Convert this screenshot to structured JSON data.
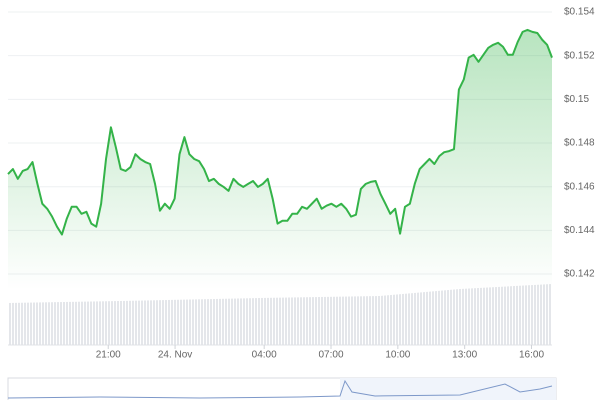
{
  "chart_data": {
    "type": "line",
    "x": [
      16.5,
      16.72,
      16.94,
      17.16,
      17.38,
      17.6,
      17.82,
      18.04,
      18.26,
      18.48,
      18.7,
      18.92,
      19.14,
      19.36,
      19.58,
      19.8,
      20.02,
      20.24,
      20.46,
      20.68,
      20.9,
      21.12,
      21.34,
      21.56,
      21.78,
      22,
      22.22,
      22.44,
      22.66,
      22.88,
      23.1,
      23.32,
      23.54,
      23.76,
      23.98,
      24.2,
      24.42,
      24.64,
      24.86,
      25.08,
      25.3,
      25.52,
      25.74,
      25.96,
      26.18,
      26.4,
      26.62,
      26.84,
      27.06,
      27.28,
      27.5,
      27.72,
      27.94,
      28.16,
      28.38,
      28.6,
      28.82,
      29.04,
      29.26,
      29.48,
      29.7,
      29.92,
      30.14,
      30.36,
      30.58,
      30.8,
      31.02,
      31.24,
      31.46,
      31.68,
      31.9,
      32.12,
      32.34,
      32.56,
      32.78,
      33,
      33.22,
      33.44,
      33.66,
      33.88,
      34.1,
      34.32,
      34.54,
      34.76,
      34.98,
      35.2,
      35.42,
      35.64,
      35.86,
      36.08,
      36.3,
      36.52,
      36.74,
      36.96,
      37.18,
      37.4,
      37.62,
      37.84,
      38.06,
      38.28,
      38.5,
      38.72,
      38.94,
      39.16,
      39.38,
      39.6,
      39.82,
      40.04,
      40.26,
      40.48,
      40.7,
      40.92
    ],
    "series": [
      {
        "color": "#34b349",
        "values": [
          0.14658,
          0.14681,
          0.14636,
          0.14672,
          0.14681,
          0.14713,
          0.14613,
          0.14522,
          0.14499,
          0.14463,
          0.14417,
          0.14381,
          0.14454,
          0.14508,
          0.14508,
          0.14476,
          0.14485,
          0.14431,
          0.14417,
          0.14522,
          0.14727,
          0.14872,
          0.14781,
          0.14681,
          0.14672,
          0.1469,
          0.14749,
          0.14727,
          0.14713,
          0.14704,
          0.14613,
          0.1449,
          0.14522,
          0.14499,
          0.14545,
          0.14749,
          0.14827,
          0.14749,
          0.14727,
          0.14717,
          0.14681,
          0.14626,
          0.14636,
          0.14613,
          0.14599,
          0.14581,
          0.14636,
          0.14613,
          0.14599,
          0.14613,
          0.14626,
          0.14599,
          0.14613,
          0.14636,
          0.14545,
          0.14431,
          0.14444,
          0.14444,
          0.14476,
          0.14476,
          0.14508,
          0.14499,
          0.14522,
          0.14545,
          0.14499,
          0.14513,
          0.14522,
          0.14508,
          0.14522,
          0.14499,
          0.14463,
          0.14472,
          0.1459,
          0.14613,
          0.14622,
          0.14626,
          0.14567,
          0.14522,
          0.14476,
          0.14499,
          0.14385,
          0.14508,
          0.14522,
          0.14613,
          0.14681,
          0.14704,
          0.14727,
          0.14704,
          0.1474,
          0.14758,
          0.14763,
          0.14772,
          0.15045,
          0.15091,
          0.15191,
          0.15204,
          0.15172,
          0.15204,
          0.15236,
          0.1525,
          0.15259,
          0.15241,
          0.15204,
          0.15204,
          0.15263,
          0.15309,
          0.15318,
          0.15309,
          0.15304,
          0.15273,
          0.1525,
          0.15191
        ]
      }
    ],
    "xlim": [
      16.5,
      40.92
    ],
    "xticks": [
      {
        "value": 21,
        "label": "21:00"
      },
      {
        "value": 24,
        "label": "24. Nov"
      },
      {
        "value": 28,
        "label": "04:00"
      },
      {
        "value": 31,
        "label": "07:00"
      },
      {
        "value": 34,
        "label": "10:00"
      },
      {
        "value": 37,
        "label": "13:00"
      },
      {
        "value": 40,
        "label": "16:00"
      }
    ],
    "ylim": [
      0.14127,
      0.15455
    ],
    "yticks": [
      {
        "value": 0.142,
        "label": "$0.142"
      },
      {
        "value": 0.144,
        "label": "$0.144"
      },
      {
        "value": 0.146,
        "label": "$0.146"
      },
      {
        "value": 0.148,
        "label": "$0.148"
      },
      {
        "value": 0.15,
        "label": "$0.15"
      },
      {
        "value": 0.152,
        "label": "$0.152"
      },
      {
        "value": 0.154,
        "label": "$0.154"
      }
    ],
    "grid": true
  }
}
